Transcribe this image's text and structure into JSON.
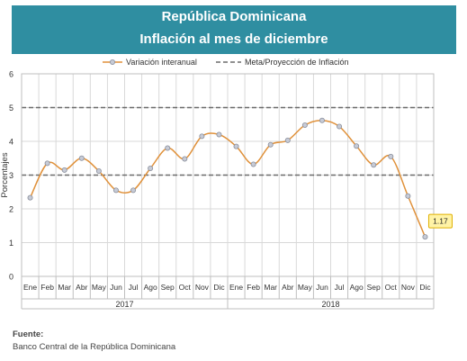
{
  "header": {
    "title": "República Dominicana",
    "subtitle": "Inflación al mes de diciembre"
  },
  "source": {
    "label": "Fuente:",
    "text": "Banco Central de la República Dominicana"
  },
  "colors": {
    "header_bg": "#2f8ea1",
    "series_line": "#e0913a",
    "marker_fill": "#c7cbd6",
    "marker_stroke": "#8a8f9c",
    "target_line": "#6b6b6b",
    "label_bg": "#fff3a6",
    "label_border": "#e0b000"
  },
  "chart_data": {
    "type": "line",
    "title": "",
    "xlabel": "",
    "ylabel": "Porcentajes",
    "ylim": [
      0,
      6
    ],
    "y_ticks": [
      0,
      1,
      2,
      3,
      4,
      5,
      6
    ],
    "grid": true,
    "legend_position": "top-center",
    "categories": [
      "Ene",
      "Feb",
      "Mar",
      "Abr",
      "May",
      "Jun",
      "Jul",
      "Ago",
      "Sep",
      "Oct",
      "Nov",
      "Dic",
      "Ene",
      "Feb",
      "Mar",
      "Abr",
      "May",
      "Jun",
      "Jul",
      "Ago",
      "Sep",
      "Oct",
      "Nov",
      "Dic"
    ],
    "year_groups": [
      {
        "label": "2017",
        "start": 0,
        "end": 11
      },
      {
        "label": "2018",
        "start": 12,
        "end": 23
      }
    ],
    "series": [
      {
        "name": "Variación interanual",
        "values": [
          2.33,
          3.35,
          3.15,
          3.5,
          3.12,
          2.55,
          2.55,
          3.2,
          3.8,
          3.48,
          4.15,
          4.2,
          3.85,
          3.32,
          3.9,
          4.03,
          4.48,
          4.62,
          4.44,
          3.86,
          3.3,
          3.55,
          2.38,
          1.17
        ]
      }
    ],
    "reference_lines": {
      "name": "Meta/Proyección de Inflación",
      "values": [
        3,
        5
      ]
    },
    "annotation": {
      "index": 23,
      "text": "1.17"
    }
  }
}
